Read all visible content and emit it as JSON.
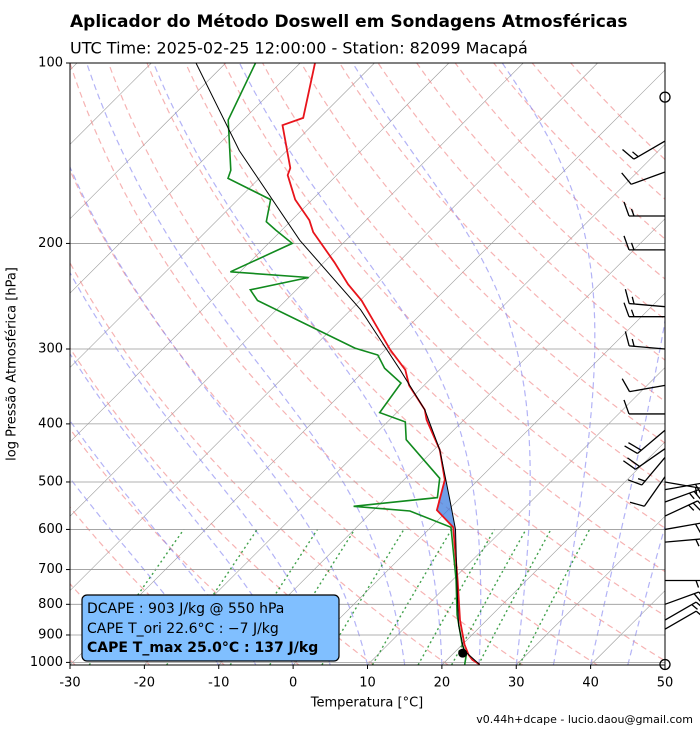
{
  "chart_data": {
    "type": "skewt",
    "title": "Aplicador do Método Doswell em Sondagens Atmosféricas",
    "subtitle": "UTC Time: 2025-02-25 12:00:00 - Station: 82099 Macapá",
    "x_label": "Temperatura [°C]",
    "y_label": "log Pressão Atmosférica [hPa]",
    "footer": "v0.44h+dcape  -  lucio.daou@gmail.com",
    "xlim": [
      -30,
      50
    ],
    "ylim": [
      1010,
      100
    ],
    "log_y": true,
    "grid": true,
    "xticks": [
      -30,
      -20,
      -10,
      0,
      10,
      20,
      30,
      40,
      50
    ],
    "yticks": [
      100,
      200,
      300,
      400,
      500,
      600,
      700,
      800,
      900,
      1000
    ],
    "series": [
      {
        "color": "#e8141b",
        "pressure": [
          100,
          123.5,
          127,
          149.7,
          153.8,
          169,
          183,
          191.5,
          215,
          234,
          249,
          301,
          325,
          345,
          379,
          394,
          442,
          496,
          557,
          595,
          729,
          850,
          934,
          971,
          990,
          1008
        ],
        "values": [
          -78,
          -72.2,
          -74,
          -67.2,
          -66.6,
          -62.3,
          -57.6,
          -55.5,
          -48.6,
          -43.8,
          -39.8,
          -29.3,
          -24.6,
          -22,
          -16.6,
          -15,
          -9.2,
          -4.5,
          -1.5,
          3,
          10.7,
          16.4,
          20.3,
          22.2,
          23.4,
          25
        ]
      },
      {
        "color": "#118a1e",
        "pressure": [
          100,
          124.5,
          151,
          155.7,
          169,
          184,
          190,
          200,
          223,
          228,
          239,
          249,
          299,
          307,
          323,
          342,
          383,
          397,
          425,
          493,
          531,
          549,
          559,
          595,
          729,
          833,
          934,
          971,
          1008
        ],
        "values": [
          -86,
          -82,
          -74.9,
          -74.2,
          -65.6,
          -63.2,
          -60.8,
          -56.8,
          -61.3,
          -50,
          -56.2,
          -53.8,
          -34.3,
          -30.3,
          -27.6,
          -23.4,
          -22.3,
          -17.6,
          -15.1,
          -5.4,
          -3.1,
          -13.2,
          -5,
          2.7,
          10.5,
          15.3,
          20,
          21.9,
          23
        ]
      },
      {
        "color": "#000000",
        "pressure": [
          100,
          140,
          197.6,
          258,
          325,
          379,
          442,
          536,
          600,
          760,
          867,
          955,
          1008
        ],
        "values": [
          -94,
          -76.4,
          -56.2,
          -38.7,
          -25.3,
          -16.6,
          -9.2,
          -1.1,
          3.6,
          12.1,
          16.9,
          21,
          25
        ]
      }
    ],
    "points": [
      {
        "pressure": 965,
        "temperature": 21.2
      }
    ],
    "wind": {
      "pressure": [
        114,
        135,
        152,
        180,
        205,
        255,
        265,
        300,
        345,
        385,
        410,
        440,
        455,
        490,
        500,
        515,
        540,
        570,
        600,
        630,
        730,
        800,
        850,
        880,
        1008
      ],
      "speed": [
        0,
        15,
        10,
        15,
        15,
        15,
        15,
        15,
        10,
        10,
        20,
        20,
        15,
        10,
        15,
        20,
        25,
        25,
        20,
        15,
        15,
        20,
        15,
        10,
        0
      ],
      "direction": [
        0,
        240,
        250,
        270,
        270,
        275,
        270,
        275,
        260,
        270,
        230,
        235,
        220,
        215,
        100,
        80,
        70,
        65,
        80,
        85,
        90,
        70,
        60,
        60,
        0
      ]
    },
    "annotations": [
      "DCAPE : 903 J/kg @ 550 hPa",
      "CAPE T_ori 22.6°C : −7 J/kg",
      "CAPE T_max 25.0°C : 137 J/kg"
    ]
  }
}
